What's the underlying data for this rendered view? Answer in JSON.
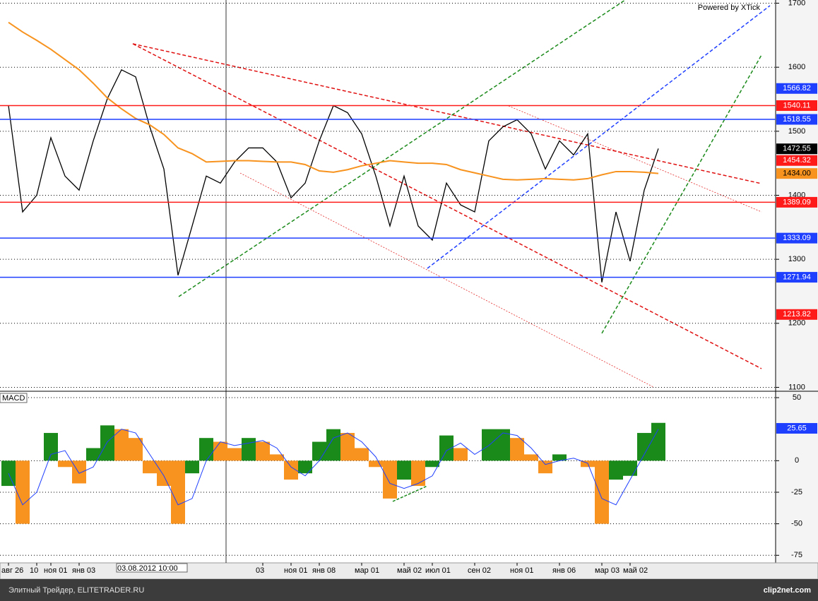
{
  "watermark": "Powered by XTick",
  "crosshair_label": "03.08.2012 10:00",
  "footer": {
    "left": "Элитный Трейдер, ELITETRADER.RU",
    "right": "clip2net.com"
  },
  "chart_data": [
    {
      "type": "line",
      "categories": [
        "авг 26",
        null,
        "10",
        "ноя 01",
        null,
        "янв 03",
        null,
        null,
        null,
        null,
        null,
        null,
        null,
        null,
        null,
        null,
        null,
        null,
        "03",
        null,
        "ноя 01",
        null,
        "янв 08",
        null,
        null,
        "мар 01",
        null,
        null,
        "май 02",
        null,
        "июл 01",
        null,
        null,
        "сен 02",
        null,
        null,
        "ноя 01",
        null,
        null,
        "янв 06",
        null,
        null,
        "мар 03",
        null,
        "май 02",
        null,
        null
      ],
      "series": [
        {
          "color": "#000000",
          "values": [
            1540,
            1374,
            1400,
            1490,
            1430,
            1408,
            1485,
            1551,
            1596,
            1585,
            1507,
            1441,
            1275,
            1352,
            1430,
            1419,
            1452,
            1474,
            1474,
            1452,
            1396,
            1419,
            1485,
            1540,
            1529,
            1496,
            1430,
            1352,
            1430,
            1352,
            1330,
            1419,
            1385,
            1374,
            1485,
            1507,
            1518,
            1496,
            1441,
            1485,
            1463,
            1496,
            1264,
            1374,
            1297,
            1408,
            1473
          ]
        },
        {
          "color": "#f7931e",
          "values": [
            1670,
            1655,
            1642,
            1628,
            1612,
            1596,
            1575,
            1552,
            1535,
            1520,
            1510,
            1495,
            1474,
            1465,
            1452,
            1453,
            1454,
            1454,
            1453,
            1452,
            1452,
            1448,
            1438,
            1436,
            1440,
            1446,
            1450,
            1454,
            1452,
            1450,
            1450,
            1448,
            1440,
            1435,
            1430,
            1425,
            1424,
            1425,
            1426,
            1425,
            1424,
            1426,
            1432,
            1437,
            1437,
            1436,
            1434
          ]
        }
      ],
      "ylim": [
        1095,
        1705
      ],
      "yticks": [
        1100,
        1200,
        1300,
        1400,
        1500,
        1600,
        1700
      ],
      "grid": true,
      "levels": [
        {
          "value": 1566.82,
          "color": "#1f3fff"
        },
        {
          "value": 1540.11,
          "color": "#ff1a1a",
          "line": true
        },
        {
          "value": 1518.55,
          "color": "#1f3fff",
          "line": true
        },
        {
          "value": 1472.55,
          "color": "#000000"
        },
        {
          "value": 1454.32,
          "color": "#ff1a1a"
        },
        {
          "value": 1434,
          "label": "1434.00",
          "color": "#f7931e"
        },
        {
          "value": 1389.09,
          "color": "#ff1a1a",
          "line": true
        },
        {
          "value": 1333.09,
          "color": "#1f3fff",
          "line": true
        },
        {
          "value": 1271.94,
          "color": "#1f3fff",
          "line": true
        },
        {
          "value": 1213.82,
          "color": "#ff1a1a"
        }
      ]
    },
    {
      "type": "bar",
      "title": "MACD",
      "values": [
        -20,
        -50,
        0,
        22,
        -5,
        -18,
        10,
        28,
        25,
        18,
        -10,
        -20,
        -50,
        -10,
        18,
        15,
        10,
        18,
        15,
        5,
        -15,
        -10,
        15,
        25,
        22,
        10,
        -5,
        -30,
        -15,
        -20,
        -5,
        20,
        10,
        0,
        25,
        25,
        18,
        5,
        -10,
        5,
        0,
        -5,
        -50,
        -15,
        -12,
        22,
        30
      ],
      "signal": {
        "color": "#1f3fff",
        "values": [
          -10,
          -35,
          -25,
          5,
          8,
          -10,
          -5,
          15,
          25,
          22,
          5,
          -12,
          -35,
          -30,
          0,
          15,
          12,
          14,
          16,
          10,
          -5,
          -12,
          0,
          18,
          22,
          15,
          3,
          -18,
          -22,
          -18,
          -12,
          8,
          14,
          5,
          12,
          22,
          20,
          10,
          -3,
          0,
          2,
          -2,
          -30,
          -35,
          -15,
          5,
          25
        ]
      },
      "up_color": "#1a8a1a",
      "down_color": "#f7931e",
      "ylim": [
        -81,
        54.5
      ],
      "yticks": [
        50,
        0,
        -25,
        -50,
        -75
      ],
      "grid": true,
      "levels": [
        {
          "value": 25.65,
          "color": "#1f3fff"
        }
      ]
    }
  ]
}
